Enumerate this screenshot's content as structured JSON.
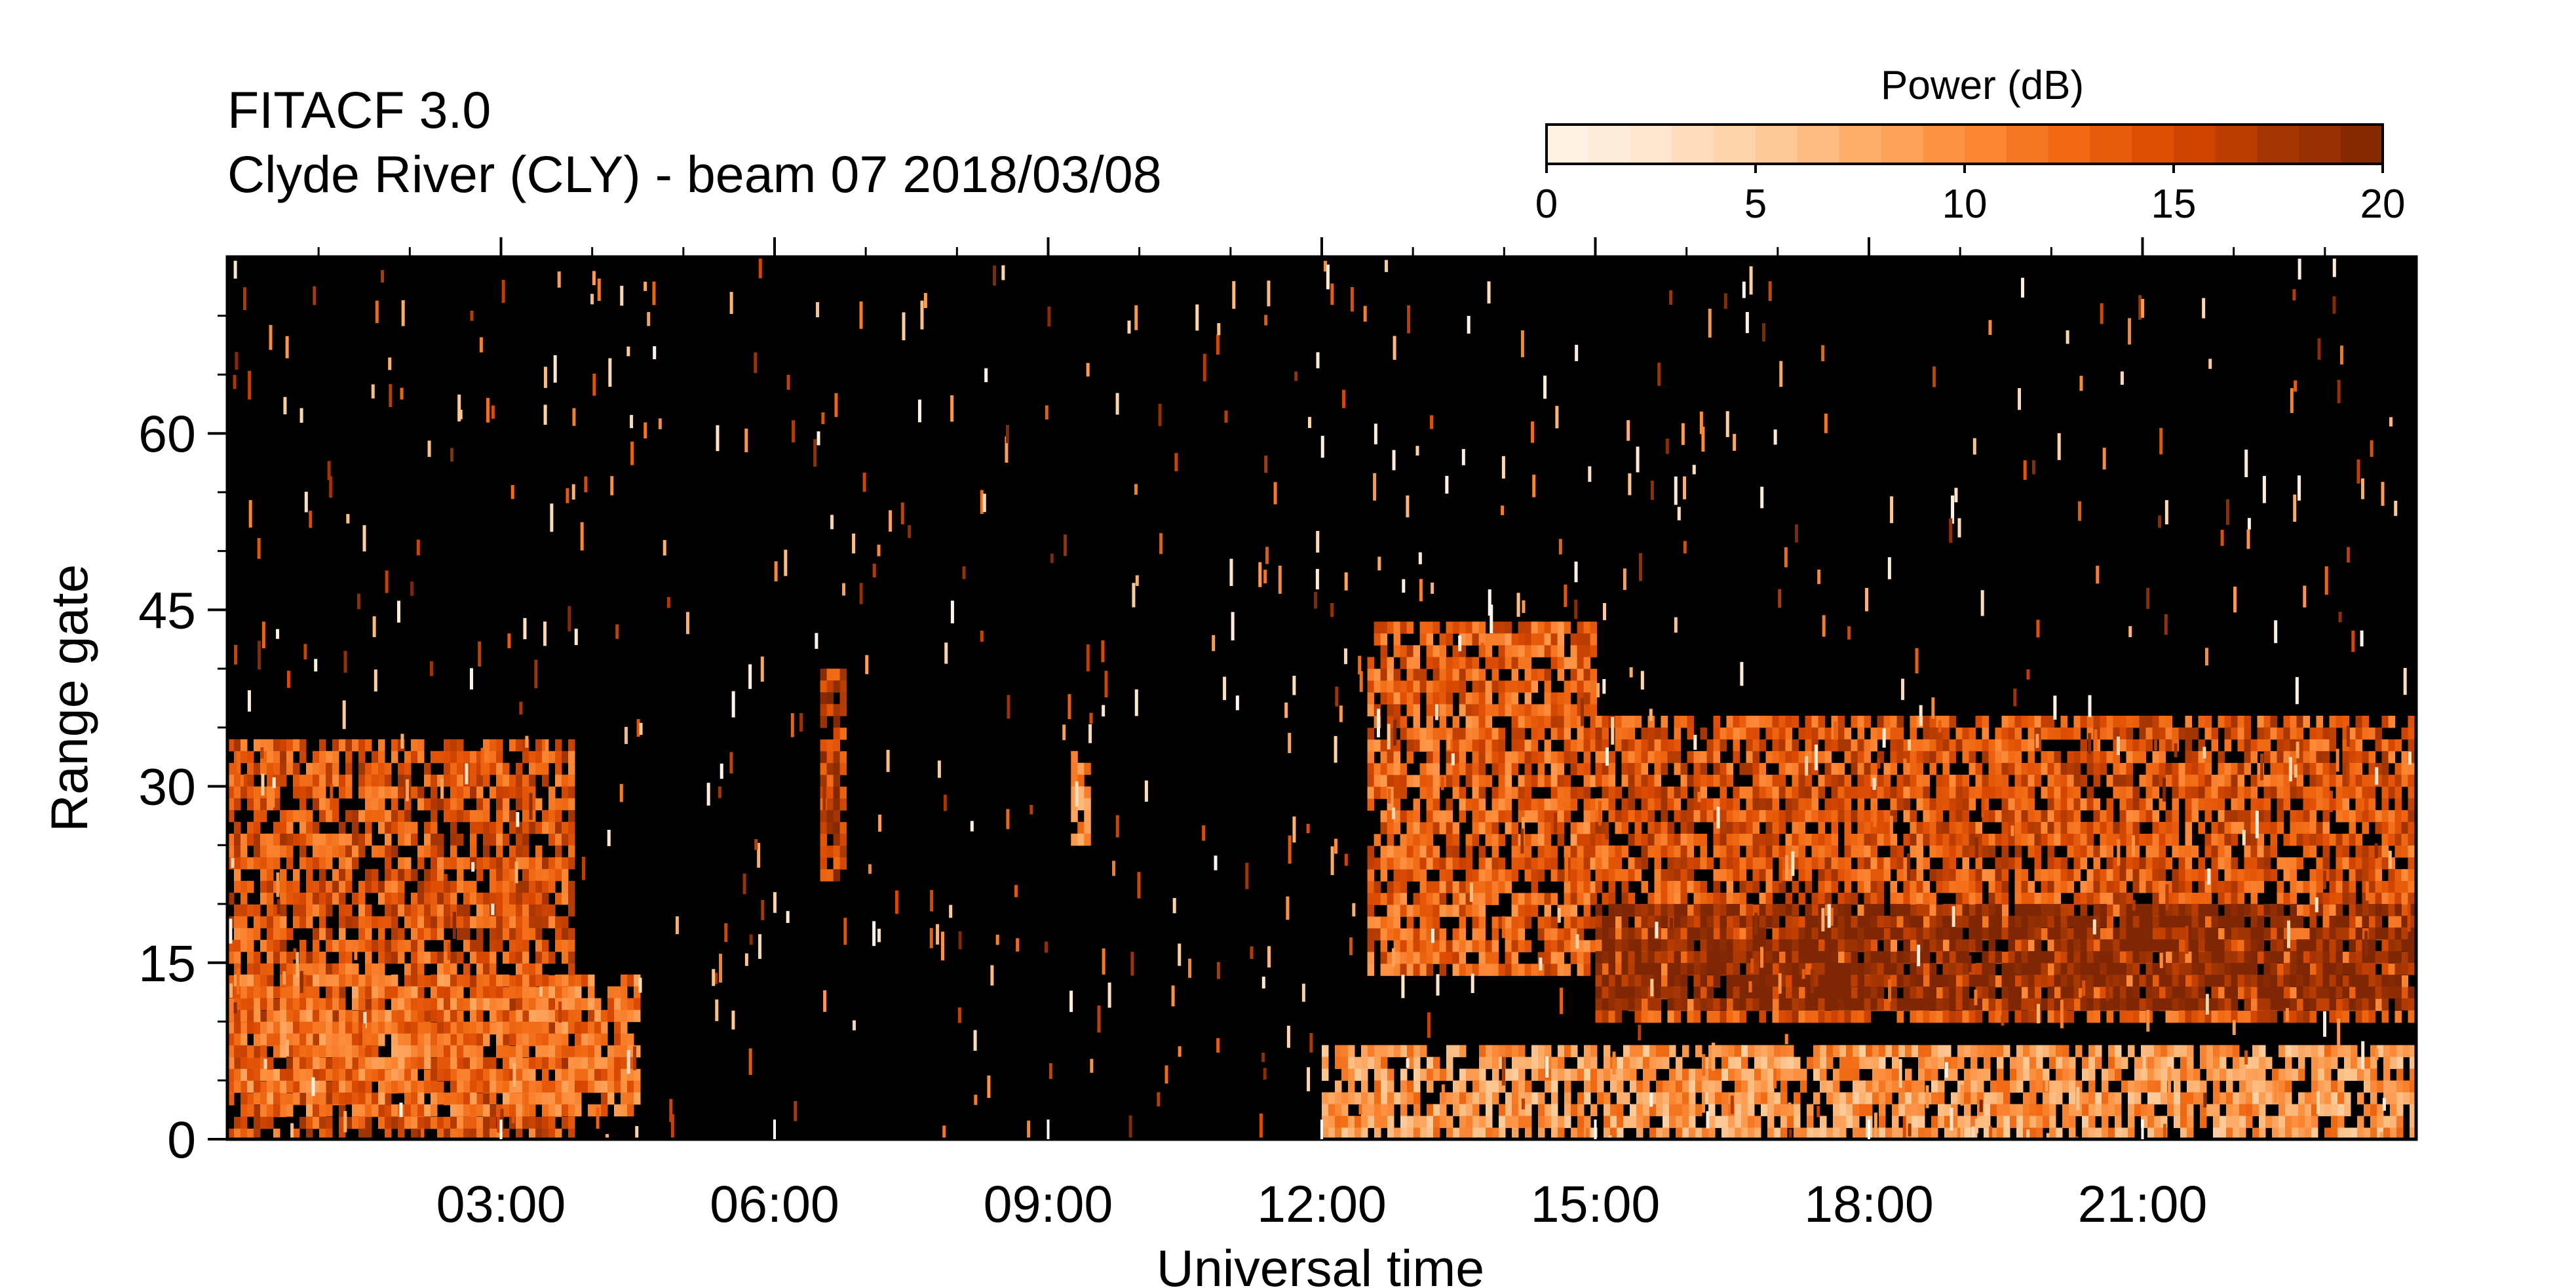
{
  "header": {
    "title": "FITACF 3.0",
    "subtitle": "Clyde River (CLY) - beam 07  2018/03/08"
  },
  "colorbar": {
    "label": "Power (dB)",
    "range": [
      0,
      20
    ],
    "ticks": [
      "0",
      "5",
      "10",
      "15",
      "20"
    ],
    "colors": [
      "#fff5eb",
      "#fee6ce",
      "#fdd0a2",
      "#fdae6b",
      "#fd8d3c",
      "#f16913",
      "#d94801",
      "#a63603",
      "#7f2704"
    ]
  },
  "chart_data": {
    "type": "heatmap",
    "title": "FITACF 3.0",
    "subtitle": "Clyde River (CLY) - beam 07  2018/03/08",
    "xlabel": "Universal time",
    "ylabel": "Range gate",
    "xlim": [
      "00:00",
      "24:00"
    ],
    "ylim": [
      0,
      75
    ],
    "x_ticks": [
      "03:00",
      "06:00",
      "09:00",
      "12:00",
      "15:00",
      "18:00",
      "21:00"
    ],
    "y_ticks": [
      "0",
      "15",
      "30",
      "45",
      "60"
    ],
    "background": "#000000",
    "colormap": "orange sequential (white to dark brown)",
    "value_range": [
      0,
      20
    ],
    "scatter_regions": [
      {
        "time_start": "00:00",
        "time_end": "03:45",
        "gate_min": 0,
        "gate_max": 34,
        "power_db": 14
      },
      {
        "time_start": "00:00",
        "time_end": "04:30",
        "gate_min": 2,
        "gate_max": 14,
        "power_db": 12
      },
      {
        "time_start": "06:30",
        "time_end": "06:45",
        "gate_min": 22,
        "gate_max": 40,
        "power_db": 16
      },
      {
        "time_start": "09:15",
        "time_end": "09:25",
        "gate_min": 25,
        "gate_max": 33,
        "power_db": 10
      },
      {
        "time_start": "12:30",
        "time_end": "15:00",
        "gate_min": 14,
        "gate_max": 44,
        "power_db": 13
      },
      {
        "time_start": "15:00",
        "time_end": "24:00",
        "gate_min": 10,
        "gate_max": 36,
        "power_db": 14
      },
      {
        "time_start": "15:00",
        "time_end": "24:00",
        "gate_min": 11,
        "gate_max": 20,
        "power_db": 20
      },
      {
        "time_start": "12:00",
        "time_end": "24:00",
        "gate_min": 0,
        "gate_max": 8,
        "power_db": 9
      }
    ]
  }
}
